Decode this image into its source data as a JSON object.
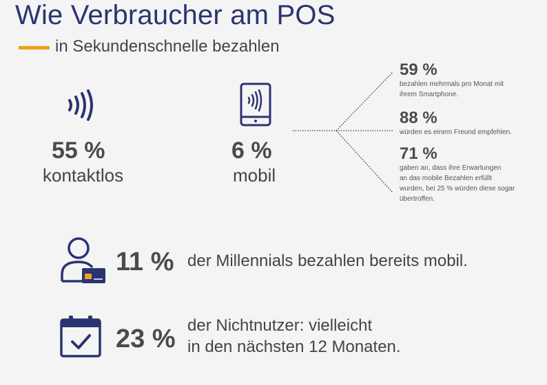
{
  "header": {
    "title": "Wie Verbraucher am POS",
    "subtitle": "in Sekundenschnelle bezahlen",
    "accent_color": "#f0a01c",
    "title_color": "#2b3370"
  },
  "stats": {
    "contactless": {
      "icon": "contactless-icon",
      "percent": "55 %",
      "label": "kontaktlos"
    },
    "mobile": {
      "icon": "smartphone-nfc-icon",
      "percent": "6 %",
      "label": "mobil"
    }
  },
  "side_stats": [
    {
      "percent": "59 %",
      "lines": [
        "bezahlen mehrmals pro Monat mit",
        "ihrem Smartphone."
      ]
    },
    {
      "percent": "88 %",
      "lines": [
        "würden es einem Freund empfehlen."
      ]
    },
    {
      "percent": "71 %",
      "lines": [
        "gaben an, dass ihre Erwartungen",
        "an das mobile Bezahlen erfüllt",
        "wurden, bei 25 % würden diese sogar",
        "übertroffen."
      ]
    }
  ],
  "rows": [
    {
      "icon": "person-card-icon",
      "percent": "11 %",
      "lines": [
        "der Millennials bezahlen bereits mobil."
      ]
    },
    {
      "icon": "calendar-check-icon",
      "percent": "23 %",
      "lines": [
        "der Nichtnutzer: vielleicht",
        "in den nächsten 12 Monaten."
      ]
    }
  ],
  "icon_color": "#2b3370"
}
